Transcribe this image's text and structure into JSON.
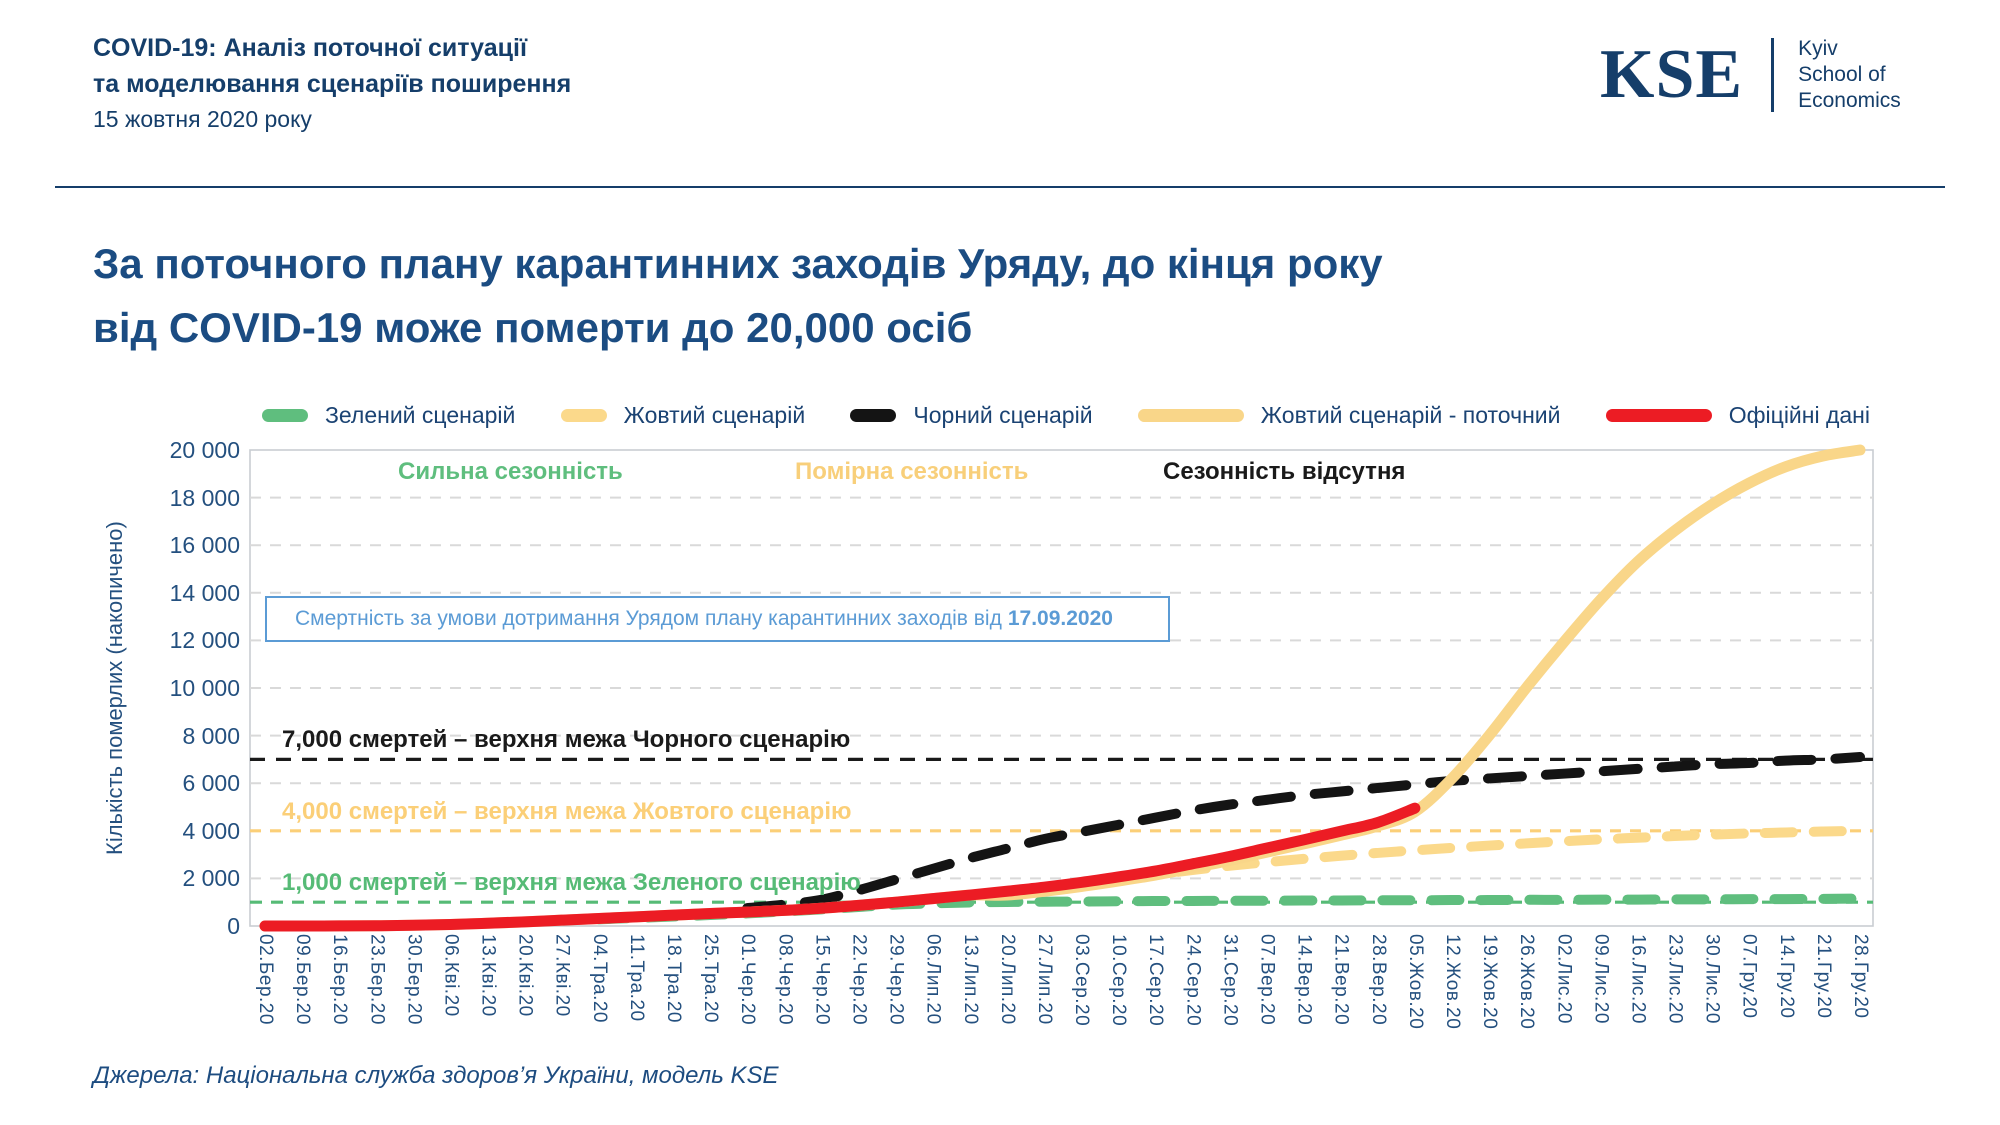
{
  "header": {
    "title_line1": "COVID-19: Аналіз поточної ситуації",
    "title_line2": "та моделювання сценаріїв поширення",
    "date": "15 жовтня 2020 року"
  },
  "logo": {
    "abbr": "KSE",
    "org_lines": [
      "Kyiv",
      "School of",
      "Economics"
    ]
  },
  "headline": {
    "line1": "За поточного плану карантинних заходів Уряду, до кінця року",
    "line2": "від COVID-19 може померти до 20,000 осіб"
  },
  "note_box": {
    "text": "Смертність за умови дотримання Урядом плану карантинних заходів від",
    "date": "17.09.2020"
  },
  "footer": {
    "source": "Джерела: Національна служба здоров’я України, модель KSE"
  },
  "chart_data": {
    "type": "line",
    "title": "За поточного плану карантинних заходів Уряду, до кінця року від COVID-19 може померти до 20,000 осіб",
    "y_axis_title": "Кількість померлих (накопичено)",
    "ylim": [
      0,
      20000
    ],
    "y_tick_step": 2000,
    "y_tick_labels": [
      "0",
      "2 000",
      "4 000",
      "6 000",
      "8 000",
      "10 000",
      "12 000",
      "14 000",
      "16 000",
      "18 000",
      "20 000"
    ],
    "grid": "horizontal-dashed",
    "legend_position": "top",
    "x_labels": [
      "02.Бер.20",
      "09.Бер.20",
      "16.Бер.20",
      "23.Бер.20",
      "30.Бер.20",
      "06.Кві.20",
      "13.Кві.20",
      "20.Кві.20",
      "27.Кві.20",
      "04.Тра.20",
      "11.Тра.20",
      "18.Тра.20",
      "25.Тра.20",
      "01.Чер.20",
      "08.Чер.20",
      "15.Чер.20",
      "22.Чер.20",
      "29.Чер.20",
      "06.Лип.20",
      "13.Лип.20",
      "20.Лип.20",
      "27.Лип.20",
      "03.Сер.20",
      "10.Сер.20",
      "17.Сер.20",
      "24.Сер.20",
      "31.Сер.20",
      "07.Вер.20",
      "14.Вер.20",
      "21.Вер.20",
      "28.Вер.20",
      "05.Жов.20",
      "12.Жов.20",
      "19.Жов.20",
      "26.Жов.20",
      "02.Лис.20",
      "09.Лис.20",
      "16.Лис.20",
      "23.Лис.20",
      "30.Лис.20",
      "07.Гру.20",
      "14.Гру.20",
      "21.Гру.20",
      "28.Гру.20"
    ],
    "season_annotations": [
      {
        "label": "Сильна сезонність",
        "color": "#5fbe7e",
        "x": 398
      },
      {
        "label": "Помірна сезонність",
        "color": "#f8cf7a",
        "x": 795
      },
      {
        "label": "Сезонність відсутня",
        "color": "#1a1a1a",
        "x": 1163
      }
    ],
    "ref_lines": [
      {
        "value": 7000,
        "label": "7,000 смертей – верхня межа Чорного сценарію",
        "color": "#1a1a1a",
        "dash": "15 11"
      },
      {
        "value": 4000,
        "label": "4,000 смертей – верхня межа Жовтого сценарію",
        "color": "#fbcf78",
        "dash": "11 9"
      },
      {
        "value": 1000,
        "label": "1,000 смертей – верхня межа Зеленого сценарію",
        "color": "#56bb76",
        "dash": "12 9"
      }
    ],
    "series": [
      {
        "name": "Зелений сценарій",
        "color": "#5fbe7e",
        "style": "dashed",
        "width": 10,
        "values": [
          null,
          null,
          null,
          null,
          null,
          null,
          null,
          null,
          null,
          280,
          340,
          400,
          460,
          530,
          610,
          700,
          800,
          900,
          950,
          990,
          1010,
          1020,
          1030,
          1040,
          1050,
          1050,
          1060,
          1060,
          1070,
          1070,
          1080,
          1080,
          1090,
          1090,
          1100,
          1100,
          1110,
          1110,
          1120,
          1120,
          1130,
          1130,
          1140,
          1150
        ]
      },
      {
        "name": "Жовтий сценарій",
        "color": "#fbd98b",
        "style": "dashed",
        "width": 10,
        "values": [
          null,
          null,
          null,
          null,
          null,
          null,
          null,
          null,
          null,
          null,
          null,
          null,
          null,
          null,
          null,
          null,
          null,
          null,
          null,
          null,
          null,
          null,
          1750,
          1950,
          2150,
          2350,
          2530,
          2680,
          2820,
          2950,
          3070,
          3180,
          3280,
          3380,
          3470,
          3560,
          3640,
          3710,
          3780,
          3840,
          3890,
          3930,
          3970,
          4000
        ]
      },
      {
        "name": "Чорний сценарій",
        "color": "#141414",
        "style": "dashed",
        "width": 10,
        "values": [
          null,
          null,
          null,
          null,
          null,
          null,
          null,
          null,
          null,
          null,
          null,
          null,
          null,
          750,
          900,
          1100,
          1500,
          1950,
          2400,
          2850,
          3250,
          3650,
          3950,
          4250,
          4550,
          4850,
          5100,
          5300,
          5500,
          5650,
          5800,
          5950,
          6100,
          6200,
          6300,
          6400,
          6500,
          6600,
          6700,
          6800,
          6850,
          6950,
          7000,
          7100
        ]
      },
      {
        "name": "Жовтий сценарій - поточний",
        "color": "#f9d689",
        "style": "solid",
        "width": 11,
        "values": [
          0,
          1,
          3,
          10,
          30,
          62,
          115,
          175,
          245,
          315,
          385,
          455,
          525,
          585,
          655,
          745,
          865,
          1000,
          1150,
          1300,
          1300,
          1460,
          1660,
          1890,
          2140,
          2440,
          2750,
          3100,
          3450,
          3810,
          4200,
          4800,
          6200,
          8000,
          10000,
          11900,
          13700,
          15300,
          16600,
          17700,
          18600,
          19300,
          19750,
          20000
        ]
      },
      {
        "name": "Офіційні дані",
        "color": "#ec1c24",
        "style": "solid",
        "width": 11,
        "values": [
          0,
          1,
          3,
          10,
          30,
          62,
          115,
          175,
          245,
          315,
          385,
          455,
          525,
          585,
          655,
          745,
          865,
          1000,
          1150,
          1300,
          1460,
          1630,
          1830,
          2060,
          2310,
          2610,
          2920,
          3270,
          3620,
          3980,
          4350,
          4950,
          null,
          null,
          null,
          null,
          null,
          null,
          null,
          null,
          null,
          null,
          null,
          null
        ]
      }
    ]
  }
}
